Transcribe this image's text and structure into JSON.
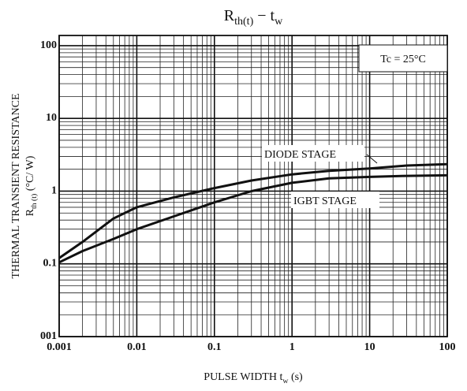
{
  "chart_data": {
    "type": "line",
    "title": [
      "R",
      "th(t)",
      " − t",
      "w"
    ],
    "xlabel": [
      "PULSE WIDTH  t",
      "w",
      "  (s)"
    ],
    "ylabel": [
      "THERMAL TRANSIENT RESISTANCE",
      "R",
      "th (t)",
      "   (°C/ W)"
    ],
    "annotation": "Tc = 25°C",
    "x": [
      0.001,
      0.002,
      0.005,
      0.01,
      0.03,
      0.1,
      0.3,
      1,
      3,
      10,
      30,
      100
    ],
    "series": [
      {
        "name": "DIODE STAGE",
        "color": "#111111",
        "values": [
          0.12,
          0.2,
          0.42,
          0.6,
          0.82,
          1.1,
          1.4,
          1.7,
          1.9,
          2.05,
          2.25,
          2.35
        ]
      },
      {
        "name": "IGBT STAGE",
        "color": "#111111",
        "values": [
          0.105,
          0.15,
          0.22,
          0.3,
          0.45,
          0.7,
          1.0,
          1.3,
          1.5,
          1.57,
          1.62,
          1.65
        ]
      }
    ],
    "xlog": true,
    "ylog": true,
    "xlim": [
      0.001,
      100
    ],
    "ylim": [
      0.01,
      138
    ],
    "xticks": [
      0.001,
      0.01,
      0.1,
      1,
      10,
      100
    ],
    "yticks": [
      {
        "value": 0.01,
        "label": "001"
      },
      0.1,
      1,
      10,
      100
    ],
    "grid": true,
    "minor_grid": true
  }
}
